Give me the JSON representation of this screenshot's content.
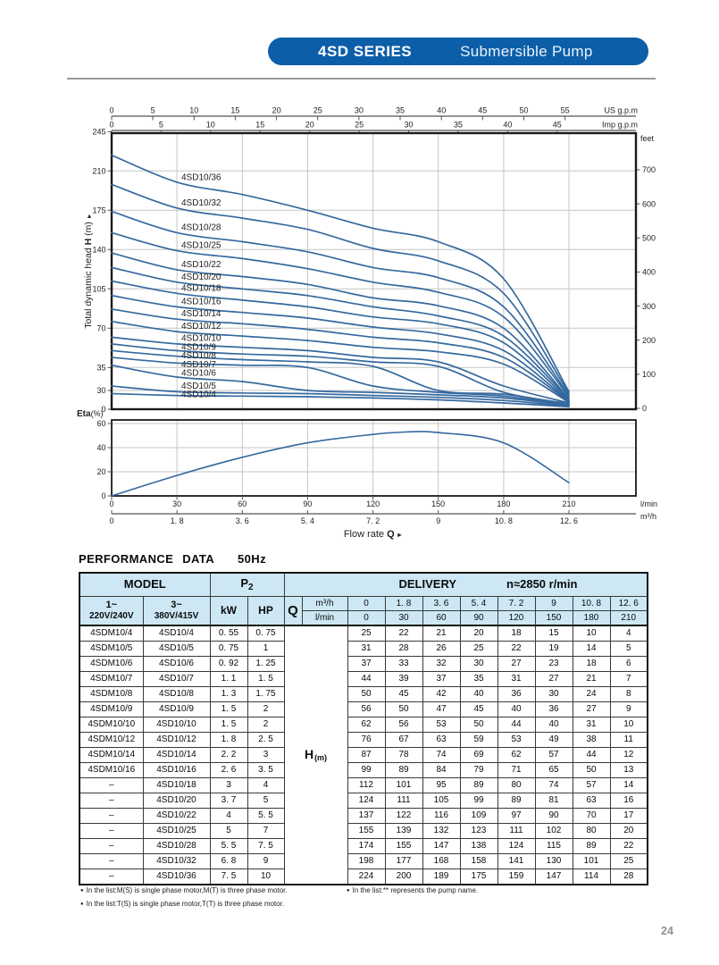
{
  "header": {
    "series": "4SD SERIES",
    "product": "Submersible Pump"
  },
  "page_number": "24",
  "performance": {
    "title": "PERFORMANCE DATA",
    "freq": "50Hz",
    "table": {
      "model_header": "MODEL",
      "p2_label": "P",
      "p2_sub": "2",
      "delivery_label": "DELIVERY",
      "speed_label": "n≈2850 r/min",
      "col1_line1": "1~",
      "col1_line2": "220V/240V",
      "col2_line1": "3~",
      "col2_line2": "380V/415V",
      "kw_label": "kW",
      "hp_label": "HP",
      "q_label": "Q",
      "m3h_label": "m³/h",
      "lmin_label": "l/min",
      "h_label": "H",
      "h_sub": "(m)",
      "m3h_values": [
        "0",
        "1. 8",
        "3. 6",
        "5. 4",
        "7. 2",
        "9",
        "10. 8",
        "12. 6"
      ],
      "lmin_values": [
        "0",
        "30",
        "60",
        "90",
        "120",
        "150",
        "180",
        "210"
      ],
      "rows": [
        {
          "m1": "4SDM10/4",
          "m2": "4SD10/4",
          "kw": "0. 55",
          "hp": "0. 75",
          "delivery": [
            25,
            22,
            21,
            20,
            18,
            15,
            10,
            4
          ]
        },
        {
          "m1": "4SDM10/5",
          "m2": "4SD10/5",
          "kw": "0. 75",
          "hp": "1",
          "delivery": [
            31,
            28,
            26,
            25,
            22,
            19,
            14,
            5
          ]
        },
        {
          "m1": "4SDM10/6",
          "m2": "4SD10/6",
          "kw": "0. 92",
          "hp": "1. 25",
          "delivery": [
            37,
            33,
            32,
            30,
            27,
            23,
            18,
            6
          ]
        },
        {
          "m1": "4SDM10/7",
          "m2": "4SD10/7",
          "kw": "1. 1",
          "hp": "1. 5",
          "delivery": [
            44,
            39,
            37,
            35,
            31,
            27,
            21,
            7
          ]
        },
        {
          "m1": "4SDM10/8",
          "m2": "4SD10/8",
          "kw": "1. 3",
          "hp": "1. 75",
          "delivery": [
            50,
            45,
            42,
            40,
            36,
            30,
            24,
            8
          ]
        },
        {
          "m1": "4SDM10/9",
          "m2": "4SD10/9",
          "kw": "1. 5",
          "hp": "2",
          "delivery": [
            56,
            50,
            47,
            45,
            40,
            36,
            27,
            9
          ]
        },
        {
          "m1": "4SDM10/10",
          "m2": "4SD10/10",
          "kw": "1. 5",
          "hp": "2",
          "delivery": [
            62,
            56,
            53,
            50,
            44,
            40,
            31,
            10
          ]
        },
        {
          "m1": "4SDM10/12",
          "m2": "4SD10/12",
          "kw": "1. 8",
          "hp": "2. 5",
          "delivery": [
            76,
            67,
            63,
            59,
            53,
            49,
            38,
            11
          ]
        },
        {
          "m1": "4SDM10/14",
          "m2": "4SD10/14",
          "kw": "2. 2",
          "hp": "3",
          "delivery": [
            87,
            78,
            74,
            69,
            62,
            57,
            44,
            12
          ]
        },
        {
          "m1": "4SDM10/16",
          "m2": "4SD10/16",
          "kw": "2. 6",
          "hp": "3. 5",
          "delivery": [
            99,
            89,
            84,
            79,
            71,
            65,
            50,
            13
          ]
        },
        {
          "m1": "–",
          "m2": "4SD10/18",
          "kw": "3",
          "hp": "4",
          "delivery": [
            112,
            101,
            95,
            89,
            80,
            74,
            57,
            14
          ]
        },
        {
          "m1": "–",
          "m2": "4SD10/20",
          "kw": "3. 7",
          "hp": "5",
          "delivery": [
            124,
            111,
            105,
            99,
            89,
            81,
            63,
            16
          ]
        },
        {
          "m1": "–",
          "m2": "4SD10/22",
          "kw": "4",
          "hp": "5. 5",
          "delivery": [
            137,
            122,
            116,
            109,
            97,
            90,
            70,
            17
          ]
        },
        {
          "m1": "–",
          "m2": "4SD10/25",
          "kw": "5",
          "hp": "7",
          "delivery": [
            155,
            139,
            132,
            123,
            111,
            102,
            80,
            20
          ]
        },
        {
          "m1": "–",
          "m2": "4SD10/28",
          "kw": "5. 5",
          "hp": "7. 5",
          "delivery": [
            174,
            155,
            147,
            138,
            124,
            115,
            89,
            22
          ]
        },
        {
          "m1": "–",
          "m2": "4SD10/32",
          "kw": "6. 8",
          "hp": "9",
          "delivery": [
            198,
            177,
            168,
            158,
            141,
            130,
            101,
            25
          ]
        },
        {
          "m1": "–",
          "m2": "4SD10/36",
          "kw": "7. 5",
          "hp": "10",
          "delivery": [
            224,
            200,
            189,
            175,
            159,
            147,
            114,
            28
          ]
        }
      ]
    },
    "footnotes": {
      "bullet": "●",
      "line1a": "In the list:M(S) is single phase motor,M(T) is three phase motor.",
      "line1b": "In the list:** represents the pump name.",
      "line2": "In the list:T(S) is single phase motor,T(T) is three phase motor."
    }
  },
  "chart_data": {
    "type": "line",
    "flow_label": {
      "text": "Flow rate",
      "q": "Q",
      "arrow": "►"
    },
    "x_axes": {
      "us_gpm": {
        "unit": "US g.p.m",
        "ticks": [
          0,
          5,
          10,
          15,
          20,
          25,
          30,
          35,
          40,
          45,
          50,
          55
        ]
      },
      "imp_gpm": {
        "unit": "Imp g.p.m",
        "ticks": [
          0,
          5,
          10,
          15,
          20,
          25,
          30,
          35,
          40,
          45
        ]
      },
      "lmin": {
        "unit": "l/min",
        "ticks": [
          0,
          30,
          60,
          90,
          120,
          150,
          180,
          210
        ]
      },
      "m3h": {
        "unit": "m³/h",
        "ticks": [
          0,
          1.8,
          3.6,
          5.4,
          7.2,
          9,
          10.8,
          12.6
        ],
        "tick_labels": [
          "0",
          "1. 8",
          "3. 6",
          "5. 4",
          "7. 2",
          "9",
          "10. 8",
          "12. 6"
        ]
      }
    },
    "y_head_axis": {
      "label": "Total dynamic head",
      "label_h": "H",
      "label_unit": "(m)",
      "arrow": "►",
      "ticks": [
        245,
        210,
        175,
        140,
        105,
        70,
        35,
        30,
        0
      ]
    },
    "y_feet_axis": {
      "unit": "feet",
      "ticks": [
        700,
        600,
        500,
        400,
        300,
        200,
        100,
        0
      ]
    },
    "q_m3h": [
      0,
      1.8,
      3.6,
      5.4,
      7.2,
      9,
      10.8,
      12.6
    ],
    "series": [
      {
        "name": "4SD10/36",
        "head_m": [
          224,
          200,
          189,
          175,
          159,
          147,
          114,
          28
        ]
      },
      {
        "name": "4SD10/32",
        "head_m": [
          198,
          177,
          168,
          158,
          141,
          130,
          101,
          25
        ]
      },
      {
        "name": "4SD10/28",
        "head_m": [
          174,
          155,
          147,
          138,
          124,
          115,
          89,
          22
        ]
      },
      {
        "name": "4SD10/25",
        "head_m": [
          155,
          139,
          132,
          123,
          111,
          102,
          80,
          20
        ]
      },
      {
        "name": "4SD10/22",
        "head_m": [
          137,
          122,
          116,
          109,
          97,
          90,
          70,
          17
        ]
      },
      {
        "name": "4SD10/20",
        "head_m": [
          124,
          111,
          105,
          99,
          89,
          81,
          63,
          16
        ]
      },
      {
        "name": "4SD10/18",
        "head_m": [
          112,
          101,
          95,
          89,
          80,
          74,
          57,
          14
        ]
      },
      {
        "name": "4SD10/16",
        "head_m": [
          99,
          89,
          84,
          79,
          71,
          65,
          50,
          13
        ]
      },
      {
        "name": "4SD10/14",
        "head_m": [
          87,
          78,
          74,
          69,
          62,
          57,
          44,
          12
        ]
      },
      {
        "name": "4SD10/12",
        "head_m": [
          76,
          67,
          63,
          59,
          53,
          49,
          38,
          11
        ]
      },
      {
        "name": "4SD10/10",
        "head_m": [
          62,
          56,
          53,
          50,
          44,
          40,
          31,
          10
        ]
      },
      {
        "name": "4SD10/9",
        "head_m": [
          56,
          50,
          47,
          45,
          40,
          36,
          27,
          9
        ]
      },
      {
        "name": "4SD10/8",
        "head_m": [
          50,
          45,
          42,
          40,
          36,
          30,
          24,
          8
        ]
      },
      {
        "name": "4SD10/7",
        "head_m": [
          44,
          39,
          37,
          35,
          31,
          27,
          21,
          7
        ]
      },
      {
        "name": "4SD10/6",
        "head_m": [
          37,
          33,
          32,
          30,
          27,
          23,
          18,
          6
        ]
      },
      {
        "name": "4SD10/5",
        "head_m": [
          31,
          28,
          26,
          25,
          22,
          19,
          14,
          5
        ]
      },
      {
        "name": "4SD10/4",
        "head_m": [
          25,
          22,
          21,
          20,
          18,
          15,
          10,
          4
        ]
      }
    ],
    "eta": {
      "label": "Eta",
      "unit": "(%)",
      "ticks": [
        60,
        40,
        20,
        0
      ],
      "points_lmin": [
        0,
        30,
        60,
        90,
        120,
        135,
        150,
        180,
        210
      ],
      "eta_pct": [
        0,
        17,
        32,
        44,
        51,
        53,
        52.5,
        44,
        11
      ]
    },
    "colors": {
      "curve": "#35699f",
      "grid": "#c6c6c6",
      "frame": "#1a1a1a",
      "axis": "#555555"
    }
  }
}
